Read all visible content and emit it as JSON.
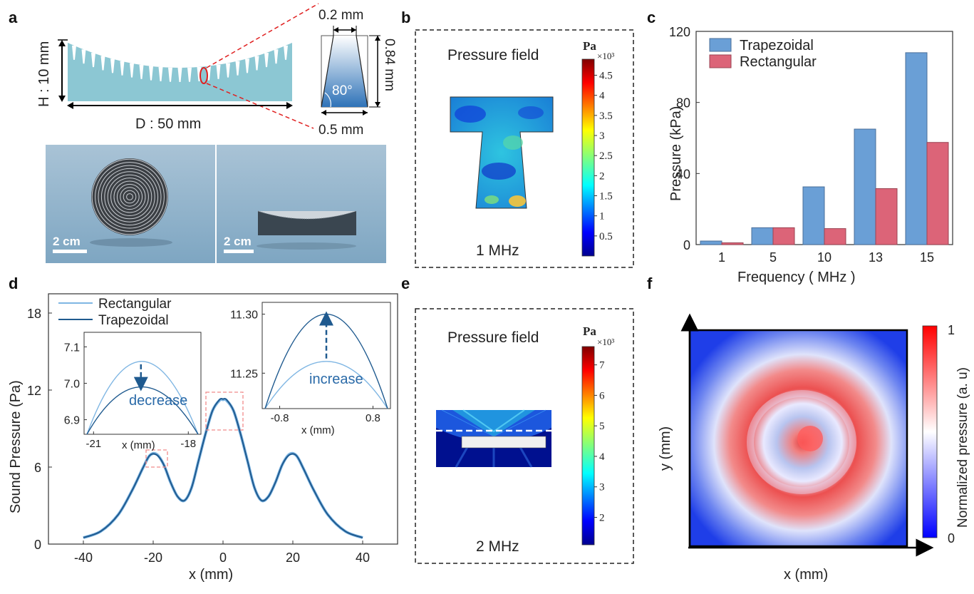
{
  "panels": {
    "a": "a",
    "b": "b",
    "c": "c",
    "d": "d",
    "e": "e",
    "f": "f"
  },
  "panel_a": {
    "height_label": "H : 10 mm",
    "diameter_label": "D : 50 mm",
    "top_width": "0.2 mm",
    "depth": "0.84 mm",
    "angle": "80°",
    "bottom_width": "0.5 mm",
    "photo1_scale": "2 cm",
    "photo2_scale": "2 cm"
  },
  "panel_b": {
    "title": "Pressure field",
    "freq": "1 MHz",
    "cbar_unit": "Pa",
    "cbar_mult": "×10³",
    "cbar_ticks": [
      "4.5",
      "4",
      "3.5",
      "3",
      "2.5",
      "2",
      "1.5",
      "1",
      "0.5"
    ],
    "cbar_values": [
      4.5,
      4,
      3.5,
      3,
      2.5,
      2,
      1.5,
      1,
      0.5
    ],
    "cbar_range": [
      0,
      4.9
    ]
  },
  "panel_e": {
    "title": "Pressure field",
    "freq": "2 MHz",
    "cbar_unit": "Pa",
    "cbar_mult": "×10³",
    "cbar_ticks": [
      "7",
      "6",
      "5",
      "4",
      "3",
      "2"
    ],
    "cbar_values": [
      7,
      6,
      5,
      4,
      3,
      2
    ],
    "cbar_range": [
      1.1,
      7.6
    ]
  },
  "panel_f": {
    "xlabel": "x (mm)",
    "ylabel": "y (mm)",
    "cbar_label": "Normalized pressure (a. u)",
    "cbar_max": "1",
    "cbar_min": "0"
  },
  "chart_data": [
    {
      "id": "c",
      "type": "bar",
      "title": "",
      "xlabel": "Frequency ( MHz )",
      "ylabel": "Pressure (kPa)",
      "categories": [
        "1",
        "5",
        "10",
        "13",
        "15"
      ],
      "series": [
        {
          "name": "Trapezoidal",
          "color": "#6a9fd6",
          "values": [
            2,
            9.5,
            32.5,
            65,
            108
          ]
        },
        {
          "name": "Rectangular",
          "color": "#dc6478",
          "values": [
            1,
            9.5,
            9,
            31.5,
            57.5
          ]
        }
      ],
      "ylim": [
        0,
        120
      ],
      "yticks": [
        "0",
        "40",
        "80",
        "120"
      ],
      "ytick_values": [
        0,
        40,
        80,
        120
      ],
      "legend": "top-left"
    },
    {
      "id": "d",
      "type": "line",
      "xlabel": "x (mm)",
      "ylabel": "Sound Pressure (Pa)",
      "xlim": [
        -50,
        50
      ],
      "ylim": [
        0,
        19.5
      ],
      "xticks": [
        "-40",
        "-20",
        "0",
        "20",
        "40"
      ],
      "xtick_values": [
        -40,
        -20,
        0,
        20,
        40
      ],
      "yticks": [
        "0",
        "6",
        "12",
        "18"
      ],
      "ytick_values": [
        0,
        6,
        12,
        18
      ],
      "x": [
        -40,
        -35,
        -30,
        -26,
        -23,
        -21,
        -19,
        -17,
        -15,
        -13,
        -11,
        -9,
        -7,
        -5,
        -3,
        -1,
        0,
        1,
        3,
        5,
        7,
        9,
        11,
        13,
        15,
        17,
        19,
        21,
        23,
        26,
        30,
        35,
        40
      ],
      "series": [
        {
          "name": "Rectangular",
          "color": "#7fb6e3",
          "values": [
            0.5,
            1.0,
            2.3,
            4.2,
            5.9,
            6.9,
            7.0,
            6.2,
            4.8,
            3.7,
            3.4,
            4.4,
            6.5,
            8.6,
            10.4,
            11.2,
            11.25,
            11.2,
            10.4,
            8.6,
            6.5,
            4.4,
            3.4,
            3.7,
            4.8,
            6.2,
            7.0,
            6.9,
            5.9,
            4.2,
            2.3,
            1.0,
            0.5
          ]
        },
        {
          "name": "Trapezoidal",
          "color": "#1f5a8f",
          "values": [
            0.5,
            1.0,
            2.3,
            4.2,
            5.9,
            6.9,
            6.95,
            6.2,
            4.8,
            3.7,
            3.4,
            4.4,
            6.5,
            8.6,
            10.4,
            11.25,
            11.3,
            11.25,
            10.4,
            8.6,
            6.5,
            4.4,
            3.4,
            3.7,
            4.8,
            6.2,
            6.95,
            6.9,
            5.9,
            4.2,
            2.3,
            1.0,
            0.5
          ]
        }
      ],
      "legend": "top-left",
      "inset_left": {
        "xlim": [
          -21.3,
          -17.6
        ],
        "ylim": [
          6.86,
          7.14
        ],
        "xticks": [
          "-21",
          "-18"
        ],
        "xtick_values": [
          -21,
          -18
        ],
        "yticks": [
          "7.1",
          "7.0",
          "6.9"
        ],
        "ytick_values": [
          7.1,
          7.0,
          6.9
        ],
        "xlabel": "x (mm)",
        "annotation": "decrease",
        "peak_x": -19.5,
        "peak_rect": 7.06,
        "peak_trap": 6.99
      },
      "inset_right": {
        "xlim": [
          -1.1,
          1.1
        ],
        "ylim": [
          11.22,
          11.31
        ],
        "xticks": [
          "-0.8",
          "0.8"
        ],
        "xtick_values": [
          -0.8,
          0.8
        ],
        "yticks": [
          "11.30",
          "11.25"
        ],
        "ytick_values": [
          11.3,
          11.25
        ],
        "xlabel": "x (mm)",
        "annotation": "increase",
        "peak_x": 0,
        "peak_rect": 11.26,
        "peak_trap": 11.3
      }
    }
  ]
}
